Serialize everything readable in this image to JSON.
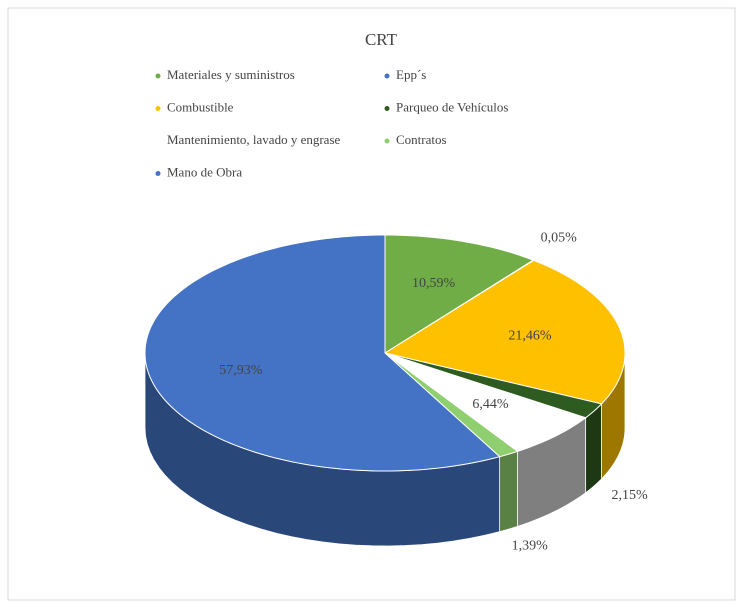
{
  "chart_data": {
    "type": "pie3d",
    "title": "CRT",
    "categories": [
      "Materiales y suministros",
      "Epp´s",
      "Combustible",
      "Parqueo de Vehículos",
      "Mantenimiento, lavado y engrase",
      "Contratos",
      "Mano de Obra"
    ],
    "values": [
      10.59,
      0.05,
      21.46,
      2.15,
      6.44,
      1.39,
      57.93
    ],
    "value_labels": [
      "10,59%",
      "0,05%",
      "21,46%",
      "2,15%",
      "6,44%",
      "1,39%",
      "57,93%"
    ],
    "colors": [
      "#70ad47",
      "#4472c4",
      "#ffc000",
      "#2e5b1f",
      "#ffffff",
      "#8fcf6f",
      "#4472c4"
    ],
    "legend": "top"
  }
}
